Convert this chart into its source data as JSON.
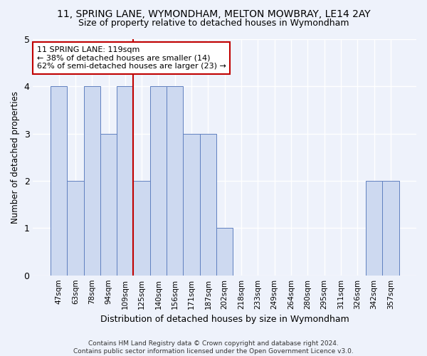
{
  "title": "11, SPRING LANE, WYMONDHAM, MELTON MOWBRAY, LE14 2AY",
  "subtitle": "Size of property relative to detached houses in Wymondham",
  "xlabel": "Distribution of detached houses by size in Wymondham",
  "ylabel": "Number of detached properties",
  "categories": [
    "47sqm",
    "63sqm",
    "78sqm",
    "94sqm",
    "109sqm",
    "125sqm",
    "140sqm",
    "156sqm",
    "171sqm",
    "187sqm",
    "202sqm",
    "218sqm",
    "233sqm",
    "249sqm",
    "264sqm",
    "280sqm",
    "295sqm",
    "311sqm",
    "326sqm",
    "342sqm",
    "357sqm"
  ],
  "bar_heights": [
    4,
    2,
    4,
    3,
    4,
    2,
    4,
    4,
    3,
    3,
    1,
    0,
    0,
    0,
    0,
    0,
    0,
    0,
    0,
    2,
    2
  ],
  "bar_color": "#cdd9f0",
  "bar_edgecolor": "#6080c0",
  "vline_color": "#c00000",
  "vline_index": 4,
  "annotation_text": "11 SPRING LANE: 119sqm\n← 38% of detached houses are smaller (14)\n62% of semi-detached houses are larger (23) →",
  "annotation_box_color": "#ffffff",
  "annotation_box_edgecolor": "#c00000",
  "ylim": [
    0,
    5
  ],
  "yticks": [
    0,
    1,
    2,
    3,
    4,
    5
  ],
  "footer": "Contains HM Land Registry data © Crown copyright and database right 2024.\nContains public sector information licensed under the Open Government Licence v3.0.",
  "background_color": "#eef2fb",
  "grid_color": "#ffffff"
}
